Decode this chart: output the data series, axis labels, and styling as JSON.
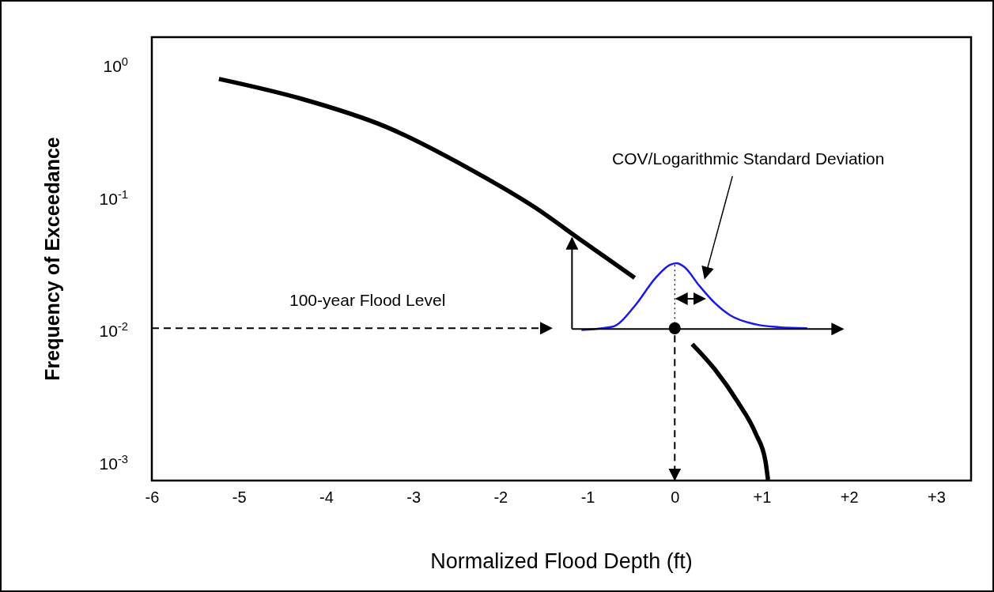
{
  "chart_data": {
    "type": "line",
    "xlabel": "Normalized Flood Depth (ft)",
    "ylabel": "Frequency of Exceedance",
    "log": "y",
    "grid": false,
    "line_style": "solid",
    "xlim": [
      -6,
      3.4
    ],
    "ylim": [
      0.00071,
      1.57
    ],
    "xticks": [
      -6,
      -5,
      -4,
      -3,
      -2,
      -1,
      0,
      {
        "value": 1,
        "label": "+1"
      },
      {
        "value": 2,
        "label": "+2"
      },
      {
        "value": 3,
        "label": "+3"
      }
    ],
    "yticks": [
      {
        "value": 1,
        "label": "10$^{0}$"
      },
      {
        "value": 0.1,
        "label": "10$^{-1}$"
      },
      {
        "value": 0.01,
        "label": "10$^{-2}$"
      },
      {
        "value": 0.001,
        "label": "10$^{-3}$"
      }
    ],
    "series": [
      {
        "color": "#000000",
        "x": [
          -5.23,
          -4.29,
          -3.31,
          -2.36,
          -1.61,
          -1.05,
          -0.46
        ],
        "values": [
          0.76,
          0.54,
          0.33,
          0.16,
          0.082,
          0.045,
          0.024
        ]
      },
      {
        "color": "#000000",
        "x": [
          0.2,
          0.46,
          0.72,
          0.93,
          1.04,
          1.07
        ],
        "values": [
          0.0076,
          0.0049,
          0.0028,
          0.0016,
          0.001,
          0.00072
        ]
      },
      {
        "color": "#1a1ae6",
        "x": [
          -1.07,
          -0.71,
          -0.46,
          -0.22,
          -0.06,
          0.02,
          0.11,
          0.28,
          0.46,
          0.63,
          0.93,
          1.2,
          1.52
        ],
        "values": [
          0.0097,
          0.0103,
          0.0147,
          0.024,
          0.03,
          0.031,
          0.029,
          0.021,
          0.0155,
          0.0126,
          0.0107,
          0.0102,
          0.01
        ]
      },
      {
        "color": "#000000",
        "line_style": "dotted",
        "x": [
          0,
          0
        ],
        "values": [
          0.01,
          0.031
        ]
      },
      {
        "type": "scatter",
        "marker": "circle",
        "color": "#000000",
        "x": [
          0
        ],
        "values": [
          0.01
        ]
      }
    ],
    "annotations": [
      "100-year Flood Level",
      "COV/Logarithmic Standard Deviation"
    ]
  }
}
